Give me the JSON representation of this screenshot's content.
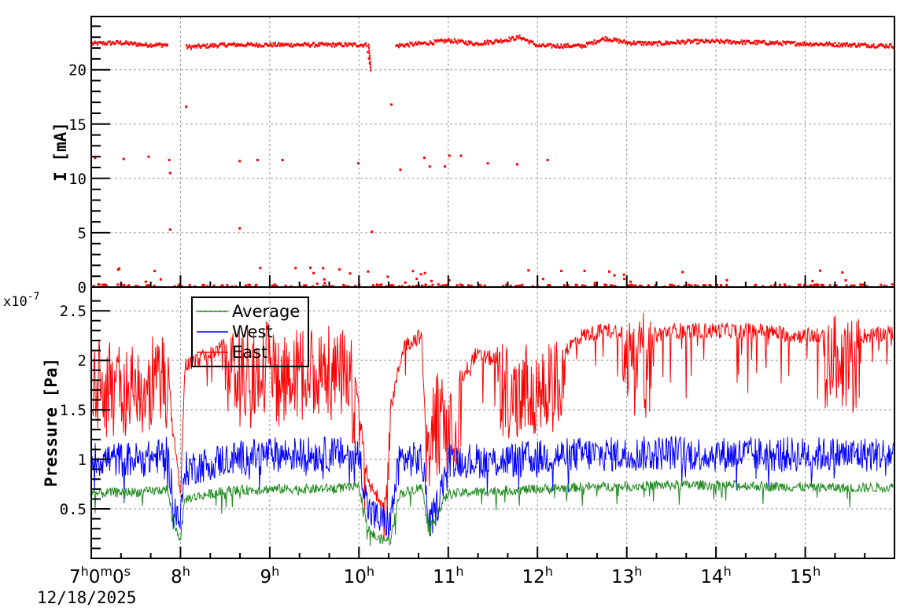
{
  "chart_data": [
    {
      "panel": "top",
      "type": "scatter",
      "title": "",
      "xlabel": "",
      "ylabel": "I [mA]",
      "ylim": [
        0,
        24.9
      ],
      "yticks": [
        "0",
        "5",
        "10",
        "15",
        "20"
      ],
      "grid": true,
      "series": [
        {
          "name": "Current",
          "color": "#ff0000",
          "x_hours": [
            7.0,
            7.3,
            7.6,
            7.85,
            8.0,
            8.05,
            8.1,
            8.5,
            9.0,
            9.5,
            10.0,
            10.08,
            10.12,
            10.35,
            10.4,
            10.8,
            11.0,
            11.3,
            11.6,
            11.8,
            12.0,
            12.5,
            12.75,
            13.0,
            13.3,
            13.7,
            14.0,
            14.5,
            15.0,
            15.5,
            16.0
          ],
          "values": [
            22.5,
            22.6,
            22.4,
            22.4,
            null,
            22.2,
            22.2,
            22.4,
            22.4,
            22.4,
            22.4,
            22.4,
            20.0,
            null,
            22.3,
            22.6,
            22.8,
            22.5,
            22.8,
            23.1,
            22.3,
            22.3,
            23.0,
            22.6,
            22.5,
            22.7,
            22.7,
            22.6,
            22.5,
            22.4,
            22.3
          ]
        }
      ],
      "outlier_points": [
        {
          "x_hours": 7.03,
          "value": 12.0
        },
        {
          "x_hours": 7.35,
          "value": 11.9
        },
        {
          "x_hours": 7.63,
          "value": 12.1
        },
        {
          "x_hours": 7.86,
          "value": 11.8
        },
        {
          "x_hours": 7.87,
          "value": 10.6
        },
        {
          "x_hours": 7.87,
          "value": 5.4
        },
        {
          "x_hours": 8.05,
          "value": 16.7
        },
        {
          "x_hours": 8.65,
          "value": 11.7
        },
        {
          "x_hours": 8.65,
          "value": 5.5
        },
        {
          "x_hours": 8.85,
          "value": 11.8
        },
        {
          "x_hours": 9.13,
          "value": 11.8
        },
        {
          "x_hours": 9.98,
          "value": 11.5
        },
        {
          "x_hours": 10.13,
          "value": 5.2
        },
        {
          "x_hours": 10.35,
          "value": 16.9
        },
        {
          "x_hours": 10.45,
          "value": 10.9
        },
        {
          "x_hours": 10.72,
          "value": 12.0
        },
        {
          "x_hours": 10.78,
          "value": 11.2
        },
        {
          "x_hours": 10.95,
          "value": 11.2
        },
        {
          "x_hours": 11.0,
          "value": 12.2
        },
        {
          "x_hours": 11.13,
          "value": 12.2
        },
        {
          "x_hours": 11.43,
          "value": 11.5
        },
        {
          "x_hours": 11.76,
          "value": 11.4
        },
        {
          "x_hours": 12.1,
          "value": 11.8
        }
      ]
    },
    {
      "panel": "bottom",
      "type": "line",
      "title": "",
      "xlabel": "",
      "ylabel": "Pressure [Pa]",
      "y_multiplier": "x10^-7",
      "ylim": [
        0,
        2.74
      ],
      "yticks": [
        "0.5",
        "1",
        "1.5",
        "2",
        "2.5"
      ],
      "grid": true,
      "legend_position": "upper-left",
      "legend": [
        "Average",
        "West",
        "East"
      ],
      "series": [
        {
          "name": "East",
          "color": "#ff0000",
          "x_hours": [
            7.0,
            7.3,
            7.6,
            7.8,
            7.85,
            7.9,
            8.0,
            8.05,
            8.3,
            8.5,
            9.0,
            9.5,
            9.9,
            10.1,
            10.2,
            10.3,
            10.35,
            10.5,
            10.7,
            10.75,
            10.85,
            11.0,
            11.3,
            11.6,
            12.0,
            12.3,
            12.5,
            12.75,
            13.0,
            13.3,
            13.5,
            14.0,
            14.5,
            14.9,
            15.0,
            15.3,
            15.5,
            15.7,
            16.0
          ],
          "values": [
            2.0,
            2.0,
            2.0,
            2.1,
            2.2,
            1.4,
            0.65,
            1.95,
            2.05,
            2.15,
            2.2,
            2.2,
            2.2,
            0.75,
            0.62,
            0.58,
            1.5,
            2.15,
            2.25,
            1.2,
            1.7,
            1.6,
            2.05,
            2.0,
            2.0,
            2.1,
            2.25,
            2.3,
            2.3,
            2.25,
            2.3,
            2.3,
            2.3,
            2.25,
            2.25,
            2.25,
            2.25,
            2.25,
            2.28
          ]
        },
        {
          "name": "West",
          "color": "#0000ff",
          "x_hours": [
            7.0,
            7.3,
            7.6,
            7.85,
            7.95,
            8.0,
            8.05,
            8.5,
            9.0,
            9.5,
            10.0,
            10.1,
            10.2,
            10.35,
            10.45,
            10.7,
            10.8,
            10.9,
            11.0,
            11.5,
            12.0,
            12.5,
            13.0,
            13.5,
            14.0,
            14.5,
            15.0,
            15.5,
            16.0
          ],
          "values": [
            1.0,
            1.0,
            1.0,
            1.05,
            0.45,
            0.38,
            0.9,
            1.0,
            1.05,
            1.05,
            1.05,
            0.5,
            0.4,
            0.35,
            1.0,
            1.0,
            0.35,
            0.6,
            1.0,
            0.98,
            1.02,
            1.05,
            1.05,
            1.07,
            1.05,
            1.05,
            1.05,
            1.05,
            1.05
          ]
        },
        {
          "name": "Average",
          "color": "#228b22",
          "x_hours": [
            7.0,
            7.3,
            7.6,
            7.85,
            7.95,
            8.0,
            8.05,
            8.5,
            9.0,
            9.5,
            10.0,
            10.1,
            10.2,
            10.35,
            10.45,
            10.7,
            10.8,
            10.9,
            11.0,
            11.5,
            12.0,
            12.5,
            13.0,
            13.5,
            14.0,
            14.5,
            15.0,
            15.5,
            16.0
          ],
          "values": [
            0.65,
            0.67,
            0.67,
            0.7,
            0.28,
            0.2,
            0.6,
            0.68,
            0.7,
            0.7,
            0.72,
            0.3,
            0.2,
            0.18,
            0.65,
            0.72,
            0.3,
            0.5,
            0.65,
            0.68,
            0.7,
            0.72,
            0.73,
            0.74,
            0.74,
            0.73,
            0.72,
            0.71,
            0.72
          ]
        }
      ]
    }
  ],
  "x_axis": {
    "ticks": [
      "7h0m0s",
      "8h",
      "9h",
      "10h",
      "11h",
      "12h",
      "13h",
      "14h",
      "15h"
    ],
    "start_label": {
      "base": [
        "7",
        "0",
        "0"
      ],
      "units": [
        "h",
        "m",
        "s"
      ]
    },
    "hour_labels": [
      {
        "num": "8",
        "unit": "h"
      },
      {
        "num": "9",
        "unit": "h"
      },
      {
        "num": "10",
        "unit": "h"
      },
      {
        "num": "11",
        "unit": "h"
      },
      {
        "num": "12",
        "unit": "h"
      },
      {
        "num": "13",
        "unit": "h"
      },
      {
        "num": "14",
        "unit": "h"
      },
      {
        "num": "15",
        "unit": "h"
      }
    ],
    "date": "12/18/2025",
    "range_hours": [
      7,
      16
    ]
  },
  "labels": {
    "top_ylabel": "I [mA]",
    "bottom_ylabel": "Pressure [Pa]",
    "exponent_base": "x10",
    "exponent_power": "-7",
    "legend_average": "Average",
    "legend_west": "West",
    "legend_east": "East"
  },
  "top_yticks": [
    {
      "label": "20",
      "value": 20
    },
    {
      "label": "15",
      "value": 15
    },
    {
      "label": "10",
      "value": 10
    },
    {
      "label": "5",
      "value": 5
    },
    {
      "label": "0",
      "value": 0
    }
  ],
  "bottom_yticks": [
    {
      "label": "2.5",
      "value": 2.5
    },
    {
      "label": "2",
      "value": 2
    },
    {
      "label": "1.5",
      "value": 1.5
    },
    {
      "label": "1",
      "value": 1
    },
    {
      "label": "0.5",
      "value": 0.5
    }
  ],
  "colors": {
    "east": "#ff0000",
    "west": "#0000ff",
    "average": "#228b22",
    "grid": "#999999",
    "axis": "#000000"
  }
}
